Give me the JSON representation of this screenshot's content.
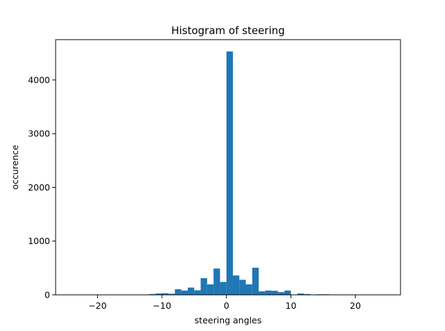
{
  "chart_data": {
    "type": "bar",
    "title": "Histogram of steering",
    "xlabel": "steering angles",
    "ylabel": "occurence",
    "xlim": [
      -26.5,
      27.0
    ],
    "ylim": [
      0,
      4750
    ],
    "xticks": [
      -20,
      -10,
      0,
      10,
      20
    ],
    "yticks": [
      0,
      1000,
      2000,
      3000,
      4000
    ],
    "xtick_labels": [
      "−20",
      "−10",
      "0",
      "10",
      "20"
    ],
    "ytick_labels": [
      "0",
      "1000",
      "2000",
      "3000",
      "4000"
    ],
    "bar_color": "#1f77b4",
    "grid": false,
    "legend": "none",
    "bins": [
      {
        "x0": -24.0,
        "x1": -23.0,
        "value": 5
      },
      {
        "x0": -23.0,
        "x1": -22.0,
        "value": 0
      },
      {
        "x0": -22.0,
        "x1": -21.0,
        "value": 0
      },
      {
        "x0": -21.0,
        "x1": -20.0,
        "value": 0
      },
      {
        "x0": -20.0,
        "x1": -19.0,
        "value": 0
      },
      {
        "x0": -19.0,
        "x1": -18.0,
        "value": 0
      },
      {
        "x0": -18.0,
        "x1": -17.0,
        "value": 5
      },
      {
        "x0": -17.0,
        "x1": -16.0,
        "value": 0
      },
      {
        "x0": -16.0,
        "x1": -15.0,
        "value": 5
      },
      {
        "x0": -15.0,
        "x1": -14.0,
        "value": 5
      },
      {
        "x0": -14.0,
        "x1": -13.0,
        "value": 5
      },
      {
        "x0": -13.0,
        "x1": -12.0,
        "value": 5
      },
      {
        "x0": -12.0,
        "x1": -11.0,
        "value": 15
      },
      {
        "x0": -11.0,
        "x1": -10.0,
        "value": 25
      },
      {
        "x0": -10.0,
        "x1": -9.0,
        "value": 30
      },
      {
        "x0": -9.0,
        "x1": -8.0,
        "value": 20
      },
      {
        "x0": -8.0,
        "x1": -7.0,
        "value": 105
      },
      {
        "x0": -7.0,
        "x1": -6.0,
        "value": 80
      },
      {
        "x0": -6.0,
        "x1": -5.0,
        "value": 135
      },
      {
        "x0": -5.0,
        "x1": -4.0,
        "value": 85
      },
      {
        "x0": -4.0,
        "x1": -3.0,
        "value": 310
      },
      {
        "x0": -3.0,
        "x1": -2.0,
        "value": 195
      },
      {
        "x0": -2.0,
        "x1": -1.0,
        "value": 490
      },
      {
        "x0": -1.0,
        "x1": 0.0,
        "value": 240
      },
      {
        "x0": 0.0,
        "x1": 1.0,
        "value": 4530
      },
      {
        "x0": 1.0,
        "x1": 2.0,
        "value": 360
      },
      {
        "x0": 2.0,
        "x1": 3.0,
        "value": 280
      },
      {
        "x0": 3.0,
        "x1": 4.0,
        "value": 195
      },
      {
        "x0": 4.0,
        "x1": 5.0,
        "value": 505
      },
      {
        "x0": 5.0,
        "x1": 6.0,
        "value": 65
      },
      {
        "x0": 6.0,
        "x1": 7.0,
        "value": 80
      },
      {
        "x0": 7.0,
        "x1": 8.0,
        "value": 75
      },
      {
        "x0": 8.0,
        "x1": 9.0,
        "value": 50
      },
      {
        "x0": 9.0,
        "x1": 10.0,
        "value": 80
      },
      {
        "x0": 10.0,
        "x1": 11.0,
        "value": 5
      },
      {
        "x0": 11.0,
        "x1": 12.0,
        "value": 25
      },
      {
        "x0": 12.0,
        "x1": 13.0,
        "value": 15
      },
      {
        "x0": 13.0,
        "x1": 14.0,
        "value": 0
      },
      {
        "x0": 14.0,
        "x1": 15.0,
        "value": 10
      },
      {
        "x0": 15.0,
        "x1": 16.0,
        "value": 10
      },
      {
        "x0": 16.0,
        "x1": 17.0,
        "value": 5
      },
      {
        "x0": 17.0,
        "x1": 18.0,
        "value": 0
      },
      {
        "x0": 18.0,
        "x1": 19.0,
        "value": 0
      },
      {
        "x0": 19.0,
        "x1": 20.0,
        "value": 0
      },
      {
        "x0": 20.0,
        "x1": 21.0,
        "value": 0
      },
      {
        "x0": 21.0,
        "x1": 22.0,
        "value": 0
      },
      {
        "x0": 22.0,
        "x1": 23.0,
        "value": 0
      },
      {
        "x0": 23.0,
        "x1": 24.0,
        "value": 0
      },
      {
        "x0": 24.0,
        "x1": 25.0,
        "value": 0
      }
    ]
  }
}
